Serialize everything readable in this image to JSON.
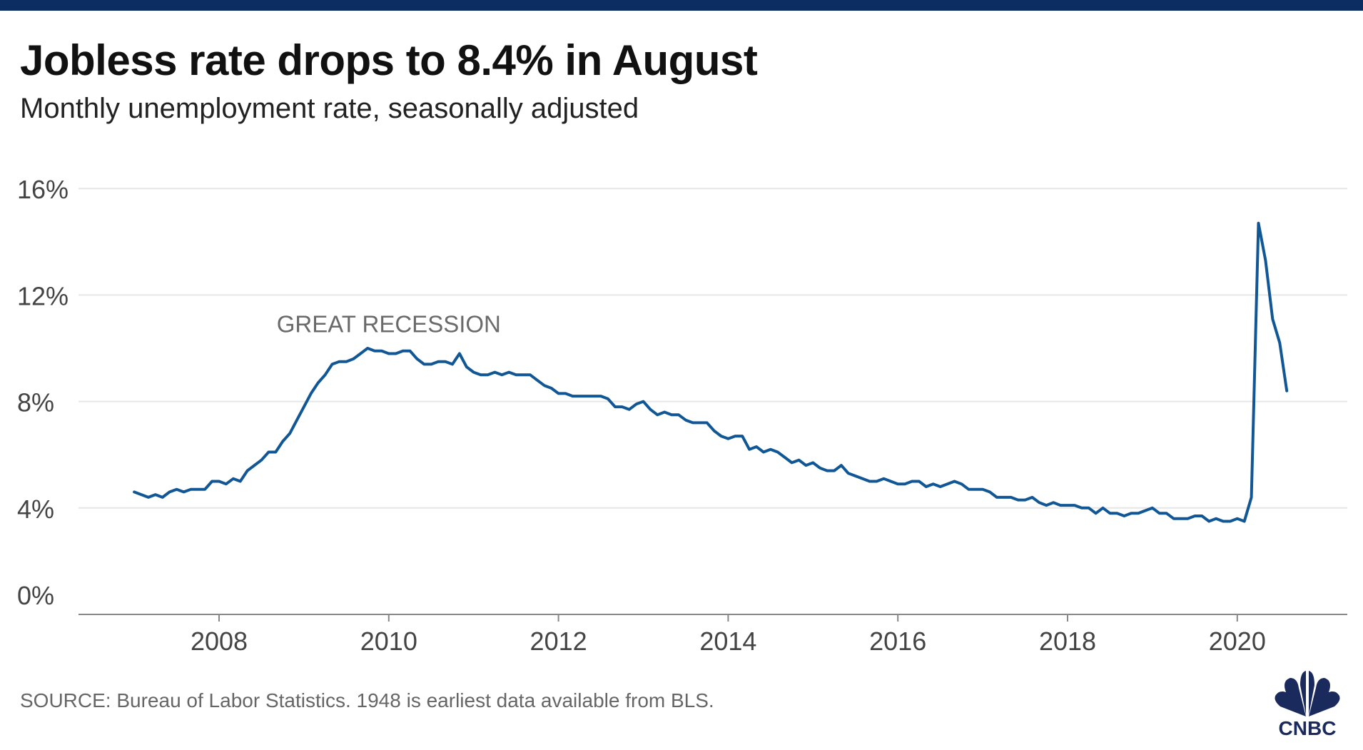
{
  "header": {
    "title": "Jobless rate drops to 8.4% in August",
    "subtitle": "Monthly unemployment rate, seasonally adjusted"
  },
  "footer": {
    "source": "SOURCE: Bureau of Labor Statistics. 1948 is earliest data available from BLS.",
    "logo_text": "CNBC"
  },
  "colors": {
    "top_bar": "#0c2d62",
    "line": "#115796",
    "grid": "#e6e6e6",
    "axis": "#888888",
    "logo": "#1b2a5c"
  },
  "chart_data": {
    "type": "line",
    "title": "Jobless rate drops to 8.4% in August",
    "subtitle": "Monthly unemployment rate, seasonally adjusted",
    "xlabel": "",
    "ylabel": "",
    "x_start": "2007-01",
    "x_end": "2020-08",
    "frequency": "monthly",
    "xlim": [
      2006.6,
      2021.2
    ],
    "ylim": [
      0,
      16
    ],
    "y_ticks": [
      0,
      4,
      8,
      12,
      16
    ],
    "y_tick_labels": [
      "0%",
      "4%",
      "8%",
      "12%",
      "16%"
    ],
    "x_ticks": [
      2008,
      2010,
      2012,
      2014,
      2016,
      2018,
      2020
    ],
    "x_tick_labels": [
      "2008",
      "2010",
      "2012",
      "2014",
      "2016",
      "2018",
      "2020"
    ],
    "grid": "horizontal",
    "annotations": [
      {
        "text": "GREAT RECESSION",
        "x": 2010.0,
        "y": 10.6
      }
    ],
    "values": [
      4.6,
      4.5,
      4.4,
      4.5,
      4.4,
      4.6,
      4.7,
      4.6,
      4.7,
      4.7,
      4.7,
      5.0,
      5.0,
      4.9,
      5.1,
      5.0,
      5.4,
      5.6,
      5.8,
      6.1,
      6.1,
      6.5,
      6.8,
      7.3,
      7.8,
      8.3,
      8.7,
      9.0,
      9.4,
      9.5,
      9.5,
      9.6,
      9.8,
      10.0,
      9.9,
      9.9,
      9.8,
      9.8,
      9.9,
      9.9,
      9.6,
      9.4,
      9.4,
      9.5,
      9.5,
      9.4,
      9.8,
      9.3,
      9.1,
      9.0,
      9.0,
      9.1,
      9.0,
      9.1,
      9.0,
      9.0,
      9.0,
      8.8,
      8.6,
      8.5,
      8.3,
      8.3,
      8.2,
      8.2,
      8.2,
      8.2,
      8.2,
      8.1,
      7.8,
      7.8,
      7.7,
      7.9,
      8.0,
      7.7,
      7.5,
      7.6,
      7.5,
      7.5,
      7.3,
      7.2,
      7.2,
      7.2,
      6.9,
      6.7,
      6.6,
      6.7,
      6.7,
      6.2,
      6.3,
      6.1,
      6.2,
      6.1,
      5.9,
      5.7,
      5.8,
      5.6,
      5.7,
      5.5,
      5.4,
      5.4,
      5.6,
      5.3,
      5.2,
      5.1,
      5.0,
      5.0,
      5.1,
      5.0,
      4.9,
      4.9,
      5.0,
      5.0,
      4.8,
      4.9,
      4.8,
      4.9,
      5.0,
      4.9,
      4.7,
      4.7,
      4.7,
      4.6,
      4.4,
      4.4,
      4.4,
      4.3,
      4.3,
      4.4,
      4.2,
      4.1,
      4.2,
      4.1,
      4.1,
      4.1,
      4.0,
      4.0,
      3.8,
      4.0,
      3.8,
      3.8,
      3.7,
      3.8,
      3.8,
      3.9,
      4.0,
      3.8,
      3.8,
      3.6,
      3.6,
      3.6,
      3.7,
      3.7,
      3.5,
      3.6,
      3.5,
      3.5,
      3.6,
      3.5,
      4.4,
      14.7,
      13.3,
      11.1,
      10.2,
      8.4
    ]
  }
}
